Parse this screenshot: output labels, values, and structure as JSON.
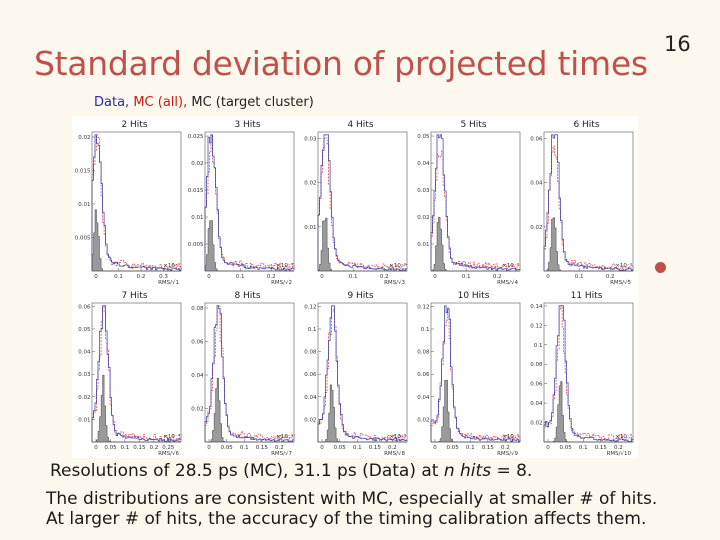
{
  "slide": {
    "title": "Standard deviation of projected times",
    "page_number": "16"
  },
  "legend": {
    "data_label": "Data,",
    "mc_all_label": "MC (all),",
    "mc_target_label": "MC (target cluster)",
    "colors": {
      "data": "#2a2aa8",
      "mc_all": "#d01818",
      "mc_target": "#444444"
    }
  },
  "chart_data": {
    "type": "histogram-grid",
    "exponent_label": "×10⁻³",
    "series": [
      {
        "name": "Data",
        "style": "blue solid line"
      },
      {
        "name": "MC (all)",
        "style": "red dashed line"
      },
      {
        "name": "MC (target cluster)",
        "style": "gray filled"
      }
    ],
    "panels": [
      {
        "title": "2 Hits",
        "xlabel": "RMS/√1",
        "xticks": [
          "0",
          "0.1",
          "0.2",
          "0.3"
        ],
        "yticks": [
          "0.02",
          "0.015",
          "0.01",
          "0.005"
        ],
        "ymax": 0.02
      },
      {
        "title": "3 Hits",
        "xlabel": "RMS/√2",
        "xticks": [
          "0",
          "0.1",
          "0.2"
        ],
        "yticks": [
          "0.025",
          "0.02",
          "0.015",
          "0.01",
          "0.005"
        ],
        "ymax": 0.027
      },
      {
        "title": "4 Hits",
        "xlabel": "RMS/√3",
        "xticks": [
          "0",
          "0.1",
          "0.2"
        ],
        "yticks": [
          "0.03",
          "0.02",
          "0.01"
        ],
        "ymax": 0.035
      },
      {
        "title": "5 Hits",
        "xlabel": "RMS/√4",
        "xticks": [
          "0",
          "0.1",
          "0.2"
        ],
        "yticks": [
          "0.05",
          "0.04",
          "0.03",
          "0.02",
          "0.01"
        ],
        "ymax": 0.052
      },
      {
        "title": "6 Hits",
        "xlabel": "RMS/√5",
        "xticks": [
          "0",
          "0.1",
          "0.2"
        ],
        "yticks": [
          "0.06",
          "0.04",
          "0.02"
        ],
        "ymax": 0.065
      },
      {
        "title": "7 Hits",
        "xlabel": "RMS/√6",
        "xticks": [
          "0",
          "0.05",
          "0.1",
          "0.15",
          "0.2",
          "0.25"
        ],
        "yticks": [
          "0.06",
          "0.05",
          "0.04",
          "0.03",
          "0.02",
          "0.01"
        ],
        "ymax": 0.065
      },
      {
        "title": "8 Hits",
        "xlabel": "RMS/√7",
        "xticks": [
          "0",
          "0.05",
          "0.1",
          "0.15",
          "0.2"
        ],
        "yticks": [
          "0.08",
          "0.06",
          "0.04",
          "0.02"
        ],
        "ymax": 0.085
      },
      {
        "title": "9 Hits",
        "xlabel": "RMS/√8",
        "xticks": [
          "0",
          "0.05",
          "0.1",
          "0.15",
          "0.2"
        ],
        "yticks": [
          "0.12",
          "0.1",
          "0.08",
          "0.06",
          "0.04",
          "0.02"
        ],
        "ymax": 0.125
      },
      {
        "title": "10 Hits",
        "xlabel": "RMS/√9",
        "xticks": [
          "0",
          "0.05",
          "0.1",
          "0.15",
          "0.2"
        ],
        "yticks": [
          "0.12",
          "0.1",
          "0.08",
          "0.06",
          "0.04",
          "0.02"
        ],
        "ymax": 0.13
      },
      {
        "title": "11 Hits",
        "xlabel": "RMS/√10",
        "xticks": [
          "0",
          "0.05",
          "0.1",
          "0.15",
          "0.2"
        ],
        "yticks": [
          "0.14",
          "0.12",
          "0.1",
          "0.08",
          "0.06",
          "0.04",
          "0.02"
        ],
        "ymax": 0.145
      }
    ]
  },
  "body": {
    "line1_prefix": "Resolutions of 28.5 ps (MC), 31.1 ps (Data) at ",
    "line1_emph": "n hits",
    "line1_suffix": " = 8.",
    "line2": "The distributions are consistent with MC, especially at smaller # of hits.",
    "line3": "At larger # of hits, the accuracy of the timing calibration affects them."
  }
}
